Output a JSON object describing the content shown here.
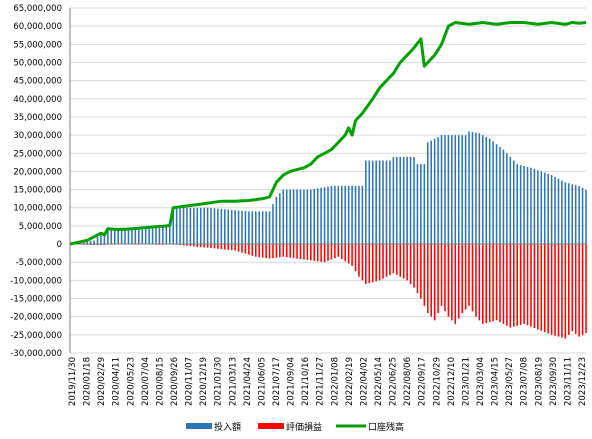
{
  "chart_data": {
    "type": "bar",
    "ylim": [
      -30000000,
      65000000
    ],
    "y_ticks": [
      "65,000,000",
      "60,000,000",
      "55,000,000",
      "50,000,000",
      "45,000,000",
      "40,000,000",
      "35,000,000",
      "30,000,000",
      "25,000,000",
      "20,000,000",
      "15,000,000",
      "10,000,000",
      "5,000,000",
      "0",
      "-5,000,000",
      "-10,000,000",
      "-15,000,000",
      "-20,000,000",
      "-25,000,000",
      "-30,000,000"
    ],
    "x_ticks": [
      "2019/11/30",
      "2020/01/18",
      "2020/02/29",
      "2020/04/11",
      "2020/05/23",
      "2020/07/04",
      "2020/08/15",
      "2020/09/26",
      "2020/11/07",
      "2020/12/19",
      "2021/01/30",
      "2021/03/13",
      "2021/04/24",
      "2021/06/05",
      "2021/07/17",
      "2021/09/04",
      "2021/10/16",
      "2021/11/27",
      "2022/01/08",
      "2022/02/19",
      "2022/04/02",
      "2022/05/14",
      "2022/06/25",
      "2022/08/06",
      "2022/09/17",
      "2022/10/29",
      "2022/12/10",
      "2023/01/21",
      "2023/03/04",
      "2023/04/15",
      "2023/05/27",
      "2023/07/08",
      "2023/08/19",
      "2023/09/30",
      "2023/11/11",
      "2023/12/23"
    ],
    "grid": true,
    "legend_position": "bottom",
    "series": [
      {
        "name": "投入額",
        "kind": "bar",
        "color": "#2e75b6",
        "points": [
          [
            0,
            0
          ],
          [
            7,
            1000000
          ],
          [
            8,
            2000000
          ],
          [
            11,
            3800000
          ],
          [
            14,
            4000000
          ],
          [
            18,
            4500000
          ],
          [
            24,
            5000000
          ],
          [
            29,
            5000000
          ],
          [
            30,
            10000000
          ],
          [
            35,
            10000000
          ],
          [
            40,
            10000000
          ],
          [
            46,
            9500000
          ],
          [
            52,
            9000000
          ],
          [
            58,
            9000000
          ],
          [
            60,
            13000000
          ],
          [
            62,
            15000000
          ],
          [
            70,
            15000000
          ],
          [
            76,
            16000000
          ],
          [
            85,
            16000000
          ],
          [
            86,
            23000000
          ],
          [
            93,
            23000000
          ],
          [
            94,
            24000000
          ],
          [
            100,
            24000000
          ],
          [
            101,
            22000000
          ],
          [
            103,
            22000000
          ],
          [
            104,
            28000000
          ],
          [
            106,
            29000000
          ],
          [
            108,
            30000000
          ],
          [
            115,
            30000000
          ],
          [
            116,
            31000000
          ],
          [
            119,
            30500000
          ],
          [
            122,
            29000000
          ],
          [
            126,
            26000000
          ],
          [
            130,
            22000000
          ],
          [
            134,
            21000000
          ],
          [
            140,
            19000000
          ],
          [
            144,
            17000000
          ],
          [
            148,
            16000000
          ],
          [
            150,
            15000000
          ]
        ]
      },
      {
        "name": "評価損益",
        "kind": "bar",
        "color": "#ff0000",
        "points": [
          [
            0,
            0
          ],
          [
            4,
            -200000
          ],
          [
            8,
            -300000
          ],
          [
            14,
            -100000
          ],
          [
            20,
            0
          ],
          [
            26,
            -200000
          ],
          [
            30,
            -100000
          ],
          [
            40,
            -1000000
          ],
          [
            48,
            -1800000
          ],
          [
            54,
            -3500000
          ],
          [
            58,
            -4000000
          ],
          [
            62,
            -3500000
          ],
          [
            66,
            -4000000
          ],
          [
            70,
            -4500000
          ],
          [
            74,
            -5000000
          ],
          [
            78,
            -3500000
          ],
          [
            82,
            -6000000
          ],
          [
            84,
            -9000000
          ],
          [
            86,
            -11000000
          ],
          [
            90,
            -10000000
          ],
          [
            94,
            -8000000
          ],
          [
            98,
            -10000000
          ],
          [
            100,
            -12000000
          ],
          [
            102,
            -15000000
          ],
          [
            104,
            -19000000
          ],
          [
            106,
            -21000000
          ],
          [
            108,
            -17000000
          ],
          [
            110,
            -20000000
          ],
          [
            112,
            -22000000
          ],
          [
            114,
            -19000000
          ],
          [
            116,
            -17000000
          ],
          [
            118,
            -20000000
          ],
          [
            120,
            -22000000
          ],
          [
            124,
            -21000000
          ],
          [
            128,
            -23000000
          ],
          [
            132,
            -22000000
          ],
          [
            136,
            -23500000
          ],
          [
            140,
            -25000000
          ],
          [
            144,
            -26000000
          ],
          [
            146,
            -24000000
          ],
          [
            148,
            -25500000
          ],
          [
            150,
            -24500000
          ]
        ]
      },
      {
        "name": "口座残高",
        "kind": "line",
        "color": "#00a000",
        "points": [
          [
            0,
            0
          ],
          [
            5,
            1000000
          ],
          [
            7,
            2000000
          ],
          [
            9,
            3000000
          ],
          [
            10,
            2500000
          ],
          [
            11,
            4200000
          ],
          [
            14,
            4000000
          ],
          [
            18,
            4200000
          ],
          [
            24,
            4700000
          ],
          [
            28,
            5000000
          ],
          [
            29,
            5100000
          ],
          [
            30,
            10000000
          ],
          [
            34,
            10500000
          ],
          [
            38,
            11000000
          ],
          [
            44,
            11800000
          ],
          [
            48,
            11800000
          ],
          [
            52,
            12000000
          ],
          [
            56,
            12500000
          ],
          [
            58,
            13000000
          ],
          [
            60,
            17000000
          ],
          [
            61,
            18000000
          ],
          [
            62,
            19000000
          ],
          [
            64,
            20000000
          ],
          [
            66,
            20500000
          ],
          [
            68,
            21000000
          ],
          [
            70,
            22000000
          ],
          [
            72,
            24000000
          ],
          [
            74,
            25000000
          ],
          [
            76,
            26000000
          ],
          [
            78,
            28000000
          ],
          [
            80,
            30000000
          ],
          [
            81,
            32000000
          ],
          [
            82,
            30000000
          ],
          [
            83,
            34000000
          ],
          [
            85,
            36000000
          ],
          [
            88,
            40000000
          ],
          [
            90,
            43000000
          ],
          [
            92,
            45000000
          ],
          [
            94,
            47000000
          ],
          [
            96,
            50000000
          ],
          [
            98,
            52000000
          ],
          [
            100,
            54000000
          ],
          [
            102,
            56500000
          ],
          [
            103,
            49000000
          ],
          [
            104,
            50000000
          ],
          [
            106,
            52000000
          ],
          [
            108,
            55000000
          ],
          [
            110,
            60000000
          ],
          [
            112,
            61000000
          ],
          [
            116,
            60500000
          ],
          [
            120,
            61000000
          ],
          [
            124,
            60500000
          ],
          [
            128,
            61000000
          ],
          [
            132,
            61000000
          ],
          [
            136,
            60500000
          ],
          [
            140,
            61000000
          ],
          [
            144,
            60500000
          ],
          [
            146,
            61000000
          ],
          [
            148,
            60800000
          ],
          [
            150,
            61000000
          ]
        ]
      }
    ]
  }
}
